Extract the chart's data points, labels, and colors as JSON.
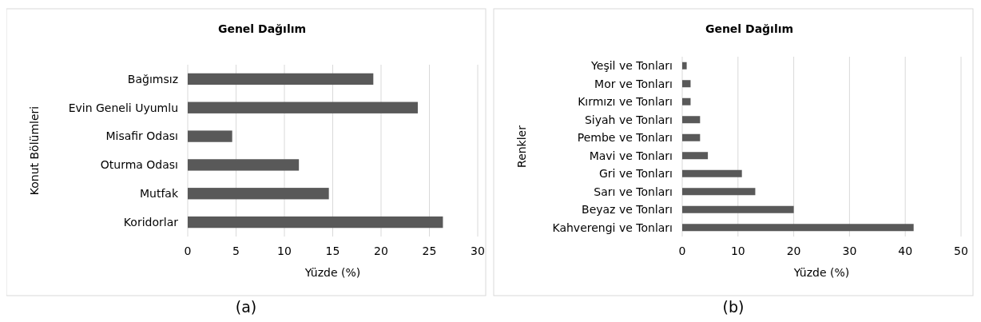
{
  "chart_data": [
    {
      "type": "bar",
      "orientation": "horizontal",
      "title": "Genel Dağılım",
      "xlabel": "Yüzde (%)",
      "ylabel": "Konut Bölümleri",
      "categories": [
        "Bağımsız",
        "Evin Geneli Uyumlu",
        "Misafir Odası",
        "Oturma Odası",
        "Mutfak",
        "Koridorlar"
      ],
      "values": [
        19.2,
        23.8,
        4.6,
        11.5,
        14.6,
        26.4
      ],
      "color": "#595959",
      "xlim": [
        0,
        30
      ],
      "xticks": [
        0,
        5,
        10,
        15,
        20,
        25,
        30
      ],
      "grid": "x",
      "annotations": [
        "(a)"
      ]
    },
    {
      "type": "bar",
      "orientation": "horizontal",
      "title": "Genel Dağılım",
      "xlabel": "Yüzde (%)",
      "ylabel": "Renkler",
      "categories": [
        "Yeşil ve Tonları",
        "Mor ve Tonları",
        "Kırmızı ve Tonları",
        "Siyah ve Tonları",
        "Pembe ve Tonları",
        "Mavi ve Tonları",
        "Gri ve Tonları",
        "Sarı ve Tonları",
        "Beyaz ve Tonları",
        "Kahverengi ve Tonları"
      ],
      "values": [
        0.8,
        1.5,
        1.5,
        3.2,
        3.2,
        4.6,
        10.7,
        13.1,
        20,
        41.5
      ],
      "color": "#595959",
      "xlim": [
        0,
        50
      ],
      "xticks": [
        0,
        10,
        20,
        30,
        40,
        50
      ],
      "grid": "x",
      "annotations": [
        "(b)"
      ]
    }
  ]
}
